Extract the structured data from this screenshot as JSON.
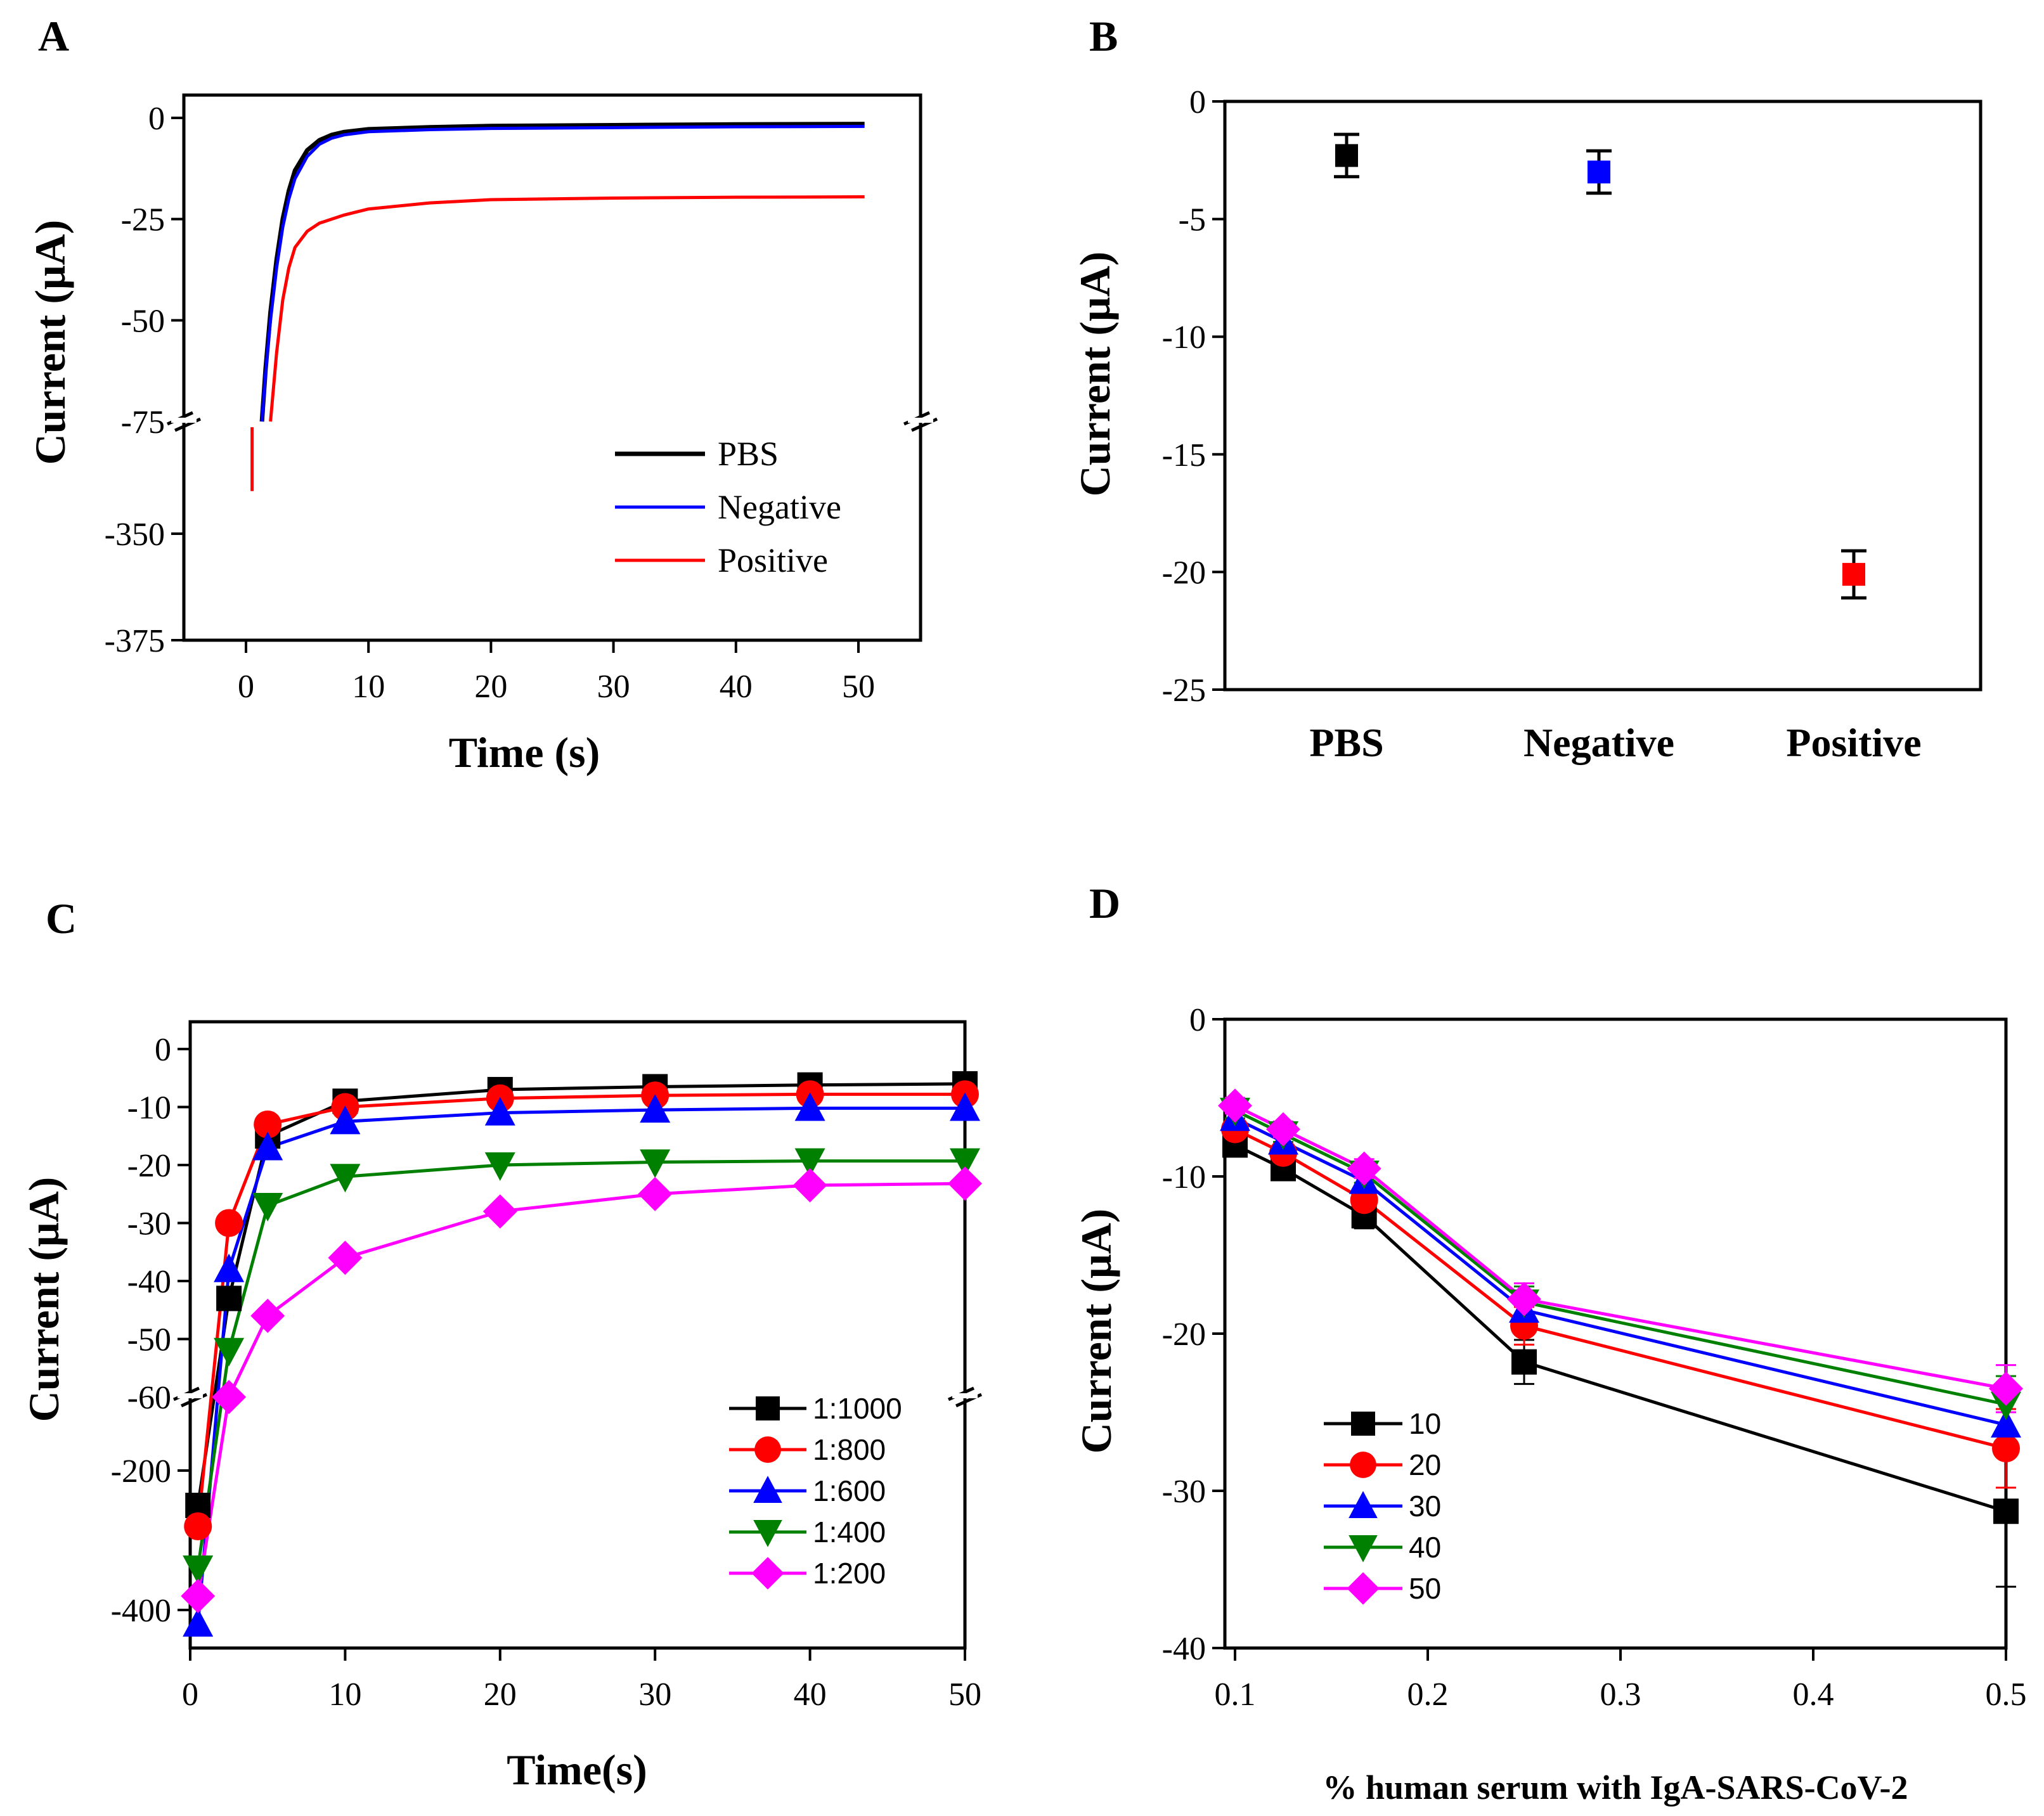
{
  "chart_data": [
    {
      "panel": "A",
      "type": "line",
      "xlabel": "Time (s)",
      "ylabel": "Current (μA)",
      "xlim": [
        -5,
        55
      ],
      "xticks": [
        "0",
        "10",
        "20",
        "30",
        "40",
        "50"
      ],
      "yticks_upper": [
        "0",
        "-25",
        "-50",
        "-75"
      ],
      "yticks_lower": [
        "-350",
        "-375"
      ],
      "ybreak": [
        -75,
        -325
      ],
      "series": [
        {
          "name": "PBS",
          "color": "#000000",
          "x": [
            1.3,
            1.6,
            2,
            2.5,
            3,
            3.5,
            4,
            5,
            6,
            7,
            8,
            10,
            15,
            20,
            30,
            40,
            50.5
          ],
          "y": [
            -75,
            -62,
            -48,
            -35,
            -25,
            -18,
            -13,
            -8,
            -5.5,
            -4.2,
            -3.5,
            -2.8,
            -2.3,
            -2.0,
            -1.8,
            -1.6,
            -1.5
          ]
        },
        {
          "name": "Negative",
          "color": "#0000ff",
          "x": [
            1.3,
            1.6,
            2,
            2.5,
            3,
            3.5,
            4,
            5,
            6,
            7,
            8,
            10,
            15,
            20,
            30,
            40,
            50.5
          ],
          "y": [
            -75,
            -63,
            -50,
            -37,
            -27,
            -20,
            -15,
            -9.5,
            -6.5,
            -5,
            -4.2,
            -3.4,
            -2.9,
            -2.6,
            -2.4,
            -2.2,
            -2.1
          ]
        },
        {
          "name": "Positive",
          "color": "#ff0000",
          "x": [
            0.5,
            0.5
          ],
          "y": [
            -340,
            -325
          ],
          "x2": [
            2,
            2.5,
            3,
            3.5,
            4,
            5,
            6,
            8,
            10,
            15,
            20,
            30,
            40,
            50.5
          ],
          "y2": [
            -75,
            -58,
            -45,
            -37,
            -32,
            -28,
            -26,
            -24,
            -22.5,
            -21,
            -20.2,
            -19.8,
            -19.6,
            -19.5
          ]
        }
      ]
    },
    {
      "panel": "B",
      "type": "scatter",
      "ylabel": "Current (μA)",
      "categories": [
        "PBS",
        "Negative",
        "Positive"
      ],
      "ylim": [
        -25,
        0
      ],
      "yticks": [
        "0",
        "-5",
        "-10",
        "-15",
        "-20",
        "-25"
      ],
      "values": [
        -2.3,
        -3.0,
        -20.1
      ],
      "errors": [
        0.9,
        0.9,
        1.0
      ],
      "colors": [
        "#000000",
        "#0000ff",
        "#ff0000"
      ]
    },
    {
      "panel": "C",
      "type": "line",
      "xlabel": "Time(s)",
      "ylabel": "Current (μA)",
      "xlim": [
        0,
        50
      ],
      "xticks": [
        "0",
        "10",
        "20",
        "30",
        "40",
        "50"
      ],
      "yticks_upper": [
        "0",
        "-10",
        "-20",
        "-30",
        "-40",
        "-50",
        "-60"
      ],
      "yticks_lower": [
        "-200",
        "-400"
      ],
      "ybreak": [
        -60,
        -100
      ],
      "x": [
        0.5,
        2.5,
        5,
        10,
        20,
        30,
        40,
        50
      ],
      "series": [
        {
          "name": "1:1000",
          "color": "#000000",
          "marker": "square",
          "y": [
            -250,
            -43,
            -15,
            -9,
            -7,
            -6.5,
            -6.2,
            -6
          ]
        },
        {
          "name": "1:800",
          "color": "#ff0000",
          "marker": "circle",
          "y": [
            -280,
            -30,
            -13,
            -10,
            -8.5,
            -8,
            -7.8,
            -7.8
          ]
        },
        {
          "name": "1:600",
          "color": "#0000ff",
          "marker": "triangle-up",
          "y": [
            -420,
            -38,
            -17,
            -12.5,
            -11,
            -10.5,
            -10.2,
            -10.2
          ]
        },
        {
          "name": "1:400",
          "color": "#008000",
          "marker": "triangle-down",
          "y": [
            -340,
            -52,
            -27,
            -22,
            -20,
            -19.5,
            -19.3,
            -19.3
          ]
        },
        {
          "name": "1:200",
          "color": "#ff00ff",
          "marker": "diamond",
          "y": [
            -380,
            -60,
            -46,
            -36,
            -28,
            -25,
            -23.5,
            -23.2
          ]
        }
      ]
    },
    {
      "panel": "D",
      "type": "line",
      "xlabel": "% human serum with IgA-SARS-CoV-2",
      "ylabel": "Current (μA)",
      "xlim": [
        0.1,
        0.5
      ],
      "ylim": [
        -40,
        0
      ],
      "xticks": [
        "0.1",
        "0.2",
        "0.3",
        "0.4",
        "0.5"
      ],
      "yticks": [
        "0",
        "-10",
        "-20",
        "-30",
        "-40"
      ],
      "x": [
        0.1,
        0.125,
        0.167,
        0.25,
        0.5
      ],
      "series": [
        {
          "name": "10",
          "color": "#000000",
          "marker": "square",
          "y": [
            -8,
            -9.5,
            -12.5,
            -21.8,
            -31.3
          ],
          "err": [
            0.5,
            0.5,
            0.8,
            1.4,
            4.8
          ]
        },
        {
          "name": "20",
          "color": "#ff0000",
          "marker": "circle",
          "y": [
            -7,
            -8.5,
            -11.5,
            -19.5,
            -27.3
          ],
          "err": [
            0.5,
            0.5,
            0.8,
            1.2,
            2.5
          ]
        },
        {
          "name": "30",
          "color": "#0000ff",
          "marker": "triangle-up",
          "y": [
            -6.3,
            -7.8,
            -10.3,
            -18.5,
            -25.8
          ],
          "err": [
            0.5,
            0.5,
            0.6,
            1.0,
            2.0
          ]
        },
        {
          "name": "40",
          "color": "#008000",
          "marker": "triangle-down",
          "y": [
            -5.8,
            -7.3,
            -9.8,
            -18,
            -24.5
          ],
          "err": [
            0.5,
            0.5,
            0.6,
            1.0,
            1.8
          ]
        },
        {
          "name": "50",
          "color": "#ff00ff",
          "marker": "diamond",
          "y": [
            -5.5,
            -7,
            -9.5,
            -17.8,
            -23.5
          ],
          "err": [
            0.5,
            0.5,
            0.6,
            1.0,
            1.5
          ]
        }
      ]
    }
  ]
}
